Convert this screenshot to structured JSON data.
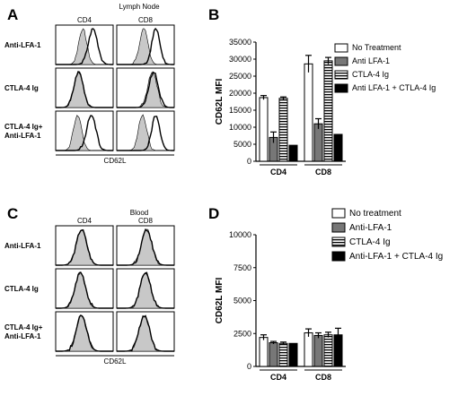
{
  "panels": {
    "A": {
      "letter": "A",
      "title": "Lymph Node",
      "col_labels": [
        "CD4",
        "CD8"
      ],
      "row_labels": [
        [
          "Anti-LFA-1"
        ],
        [
          "CTLA-4 Ig"
        ],
        [
          "CTLA-4 Ig+",
          "Anti-LFA-1"
        ]
      ],
      "xlabel": "CD62L"
    },
    "C": {
      "letter": "C",
      "title": "Blood",
      "col_labels": [
        "CD4",
        "CD8"
      ],
      "row_labels": [
        [
          "Anti-LFA-1"
        ],
        [
          "CTLA-4 Ig"
        ],
        [
          "CTLA-4 Ig+",
          "Anti-LFA-1"
        ]
      ],
      "xlabel": "CD62L"
    },
    "B": {
      "letter": "B"
    },
    "D": {
      "letter": "D"
    }
  },
  "colors": {
    "treatment_fill": "#c8c8c8",
    "outline": "#000000",
    "group2": "#777777",
    "group4": "#000000",
    "group1": "#ffffff"
  },
  "chart_data": [
    {
      "panel": "B",
      "type": "bar",
      "categories": [
        "CD4",
        "CD8"
      ],
      "ylabel": "CD62L MFI",
      "ylim": [
        0,
        35000
      ],
      "yticks": [
        0,
        5000,
        10000,
        15000,
        20000,
        25000,
        30000,
        35000
      ],
      "legend_position": "top-right",
      "series": [
        {
          "name": "No Treatment",
          "style": "white",
          "values": [
            18700,
            28600
          ],
          "errors": [
            600,
            2500
          ]
        },
        {
          "name": "Anti LFA-1",
          "style": "gray",
          "values": [
            7000,
            11000
          ],
          "errors": [
            1600,
            1500
          ]
        },
        {
          "name": "CTLA-4 Ig",
          "style": "striped",
          "values": [
            18500,
            29500
          ],
          "errors": [
            400,
            1000
          ]
        },
        {
          "name": "Anti LFA-1 + CTLA-4 Ig",
          "style": "black",
          "values": [
            4700,
            7900
          ],
          "errors": [
            0,
            0
          ]
        }
      ]
    },
    {
      "panel": "D",
      "type": "bar",
      "categories": [
        "CD4",
        "CD8"
      ],
      "ylabel": "CD62L MFI",
      "ylim": [
        0,
        10000
      ],
      "yticks": [
        0,
        2500,
        5000,
        7500,
        10000
      ],
      "legend_position": "top-right",
      "series": [
        {
          "name": "No treatment",
          "style": "white",
          "values": [
            2200,
            2550
          ],
          "errors": [
            200,
            300
          ]
        },
        {
          "name": "Anti-LFA-1",
          "style": "gray",
          "values": [
            1800,
            2350
          ],
          "errors": [
            100,
            200
          ]
        },
        {
          "name": "CTLA-4 Ig",
          "style": "striped",
          "values": [
            1750,
            2400
          ],
          "errors": [
            100,
            200
          ]
        },
        {
          "name": "Anti-LFA-1 + CTLA-4 Ig",
          "style": "black",
          "values": [
            1750,
            2400
          ],
          "errors": [
            0,
            500
          ]
        }
      ]
    }
  ]
}
